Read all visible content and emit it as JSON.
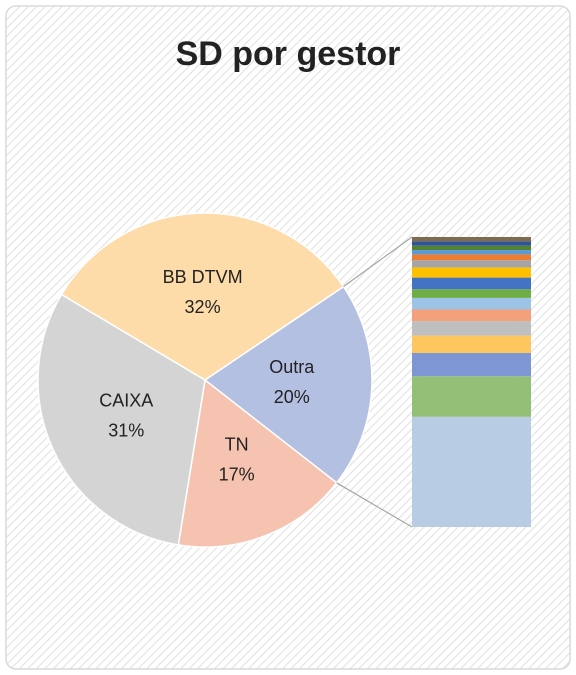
{
  "chart_data": {
    "type": "pie_of_bar",
    "title": "SD por gestor",
    "categories": [
      "Outra",
      "TN",
      "CAIXA",
      "BB DTVM"
    ],
    "values": [
      20,
      17,
      31,
      32
    ],
    "value_labels": [
      "20%",
      "17%",
      "31%",
      "32%"
    ],
    "colors": [
      "#b4c0e2",
      "#f5c3b0",
      "#d4d4d4",
      "#fddcaa"
    ],
    "bar_of": 0,
    "bar_segments": {
      "values": [
        7.6,
        2.8,
        1.6,
        1.2,
        1.0,
        0.8,
        0.8,
        0.6,
        0.8,
        0.7,
        0.5,
        0.4,
        0.3,
        0.3,
        0.3,
        0.3
      ],
      "colors": [
        "#b8cce4",
        "#93bf76",
        "#7f96d4",
        "#fdc65e",
        "#bfbfbf",
        "#f3a17a",
        "#9dc3e6",
        "#70ad47",
        "#4472c4",
        "#ffc000",
        "#a5a5a5",
        "#ed7d31",
        "#5b9bd5",
        "#548235",
        "#2f5597",
        "#7f6b4f"
      ]
    }
  }
}
